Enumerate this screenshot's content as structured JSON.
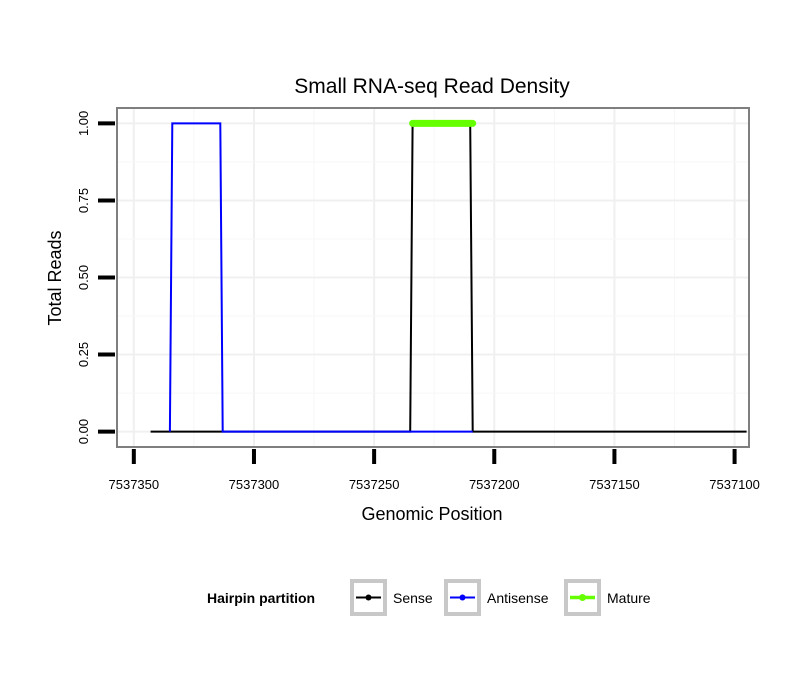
{
  "chart_data": {
    "type": "line",
    "title": "Small RNA-seq Read Density",
    "xlabel": "Genomic Position",
    "ylabel": "Total Reads",
    "x_reversed": true,
    "xlim": [
      7537357,
      7537094
    ],
    "ylim": [
      -0.05,
      1.05
    ],
    "x_ticks": [
      7537350,
      7537300,
      7537250,
      7537200,
      7537150,
      7537100
    ],
    "x_tick_labels": [
      "7537350",
      "7537300",
      "7537250",
      "7537200",
      "7537150",
      "7537100"
    ],
    "y_ticks": [
      0,
      0.25,
      0.5,
      0.75,
      1
    ],
    "y_tick_labels": [
      "0.00",
      "0.25",
      "0.50",
      "0.75",
      "1.00"
    ],
    "grid": true,
    "legend": {
      "title": "Hairpin partition",
      "position": "bottom",
      "entries": [
        "Sense",
        "Antisense",
        "Mature"
      ]
    },
    "series": [
      {
        "name": "Sense",
        "color": "#000000",
        "width": "normal",
        "x": [
          7537343,
          7537235,
          7537234,
          7537210,
          7537209,
          7537095
        ],
        "y": [
          0,
          0,
          1,
          1,
          0,
          0
        ]
      },
      {
        "name": "Antisense",
        "color": "#0000ff",
        "width": "normal",
        "x": [
          7537335,
          7537334,
          7537314,
          7537313,
          7537235,
          7537234,
          7537210,
          7537209
        ],
        "y": [
          0,
          1,
          1,
          0,
          0,
          0,
          0,
          0
        ]
      },
      {
        "name": "Mature",
        "color": "#66ff00",
        "width": "thick",
        "x": [
          7537234,
          7537209
        ],
        "y": [
          1,
          1
        ]
      }
    ]
  }
}
